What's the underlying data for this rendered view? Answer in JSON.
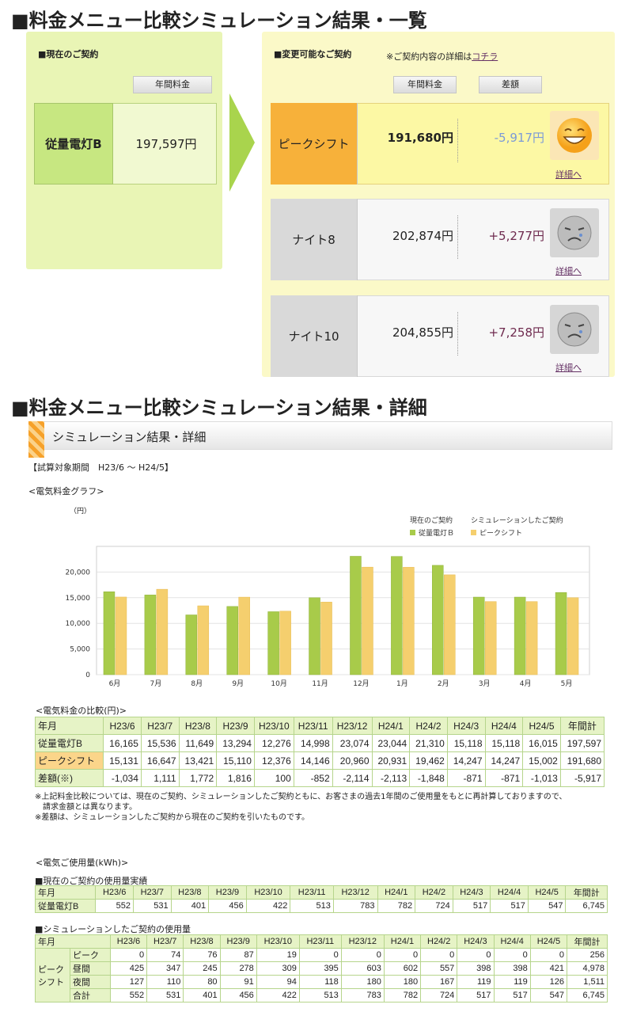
{
  "heading_summary": "■料金メニュー比較シミュレーション結果・一覧",
  "current": {
    "title": "■現在のご契約",
    "col_label": "年間料金",
    "name": "従量電灯B",
    "price": "197,597円"
  },
  "changeable": {
    "title": "■変更可能なご契約",
    "note_prefix": "※ご契約内容の詳細は",
    "note_link": "コチラ",
    "col_price": "年間料金",
    "col_diff": "差額",
    "options": [
      {
        "name": "ピークシフト",
        "price": "191,680円",
        "diff": "-5,917円",
        "link": "詳細へ",
        "diff_color": "#7b9ad8",
        "face": "happy-face-icon"
      },
      {
        "name": "ナイト8",
        "price": "202,874円",
        "diff": "+5,277円",
        "link": "詳細へ",
        "diff_color": "#6e2a4e",
        "face": "sad-face-icon"
      },
      {
        "name": "ナイト10",
        "price": "204,855円",
        "diff": "+7,258円",
        "link": "詳細へ",
        "diff_color": "#6e2a4e",
        "face": "sad-face-icon"
      }
    ]
  },
  "heading_detail": "■料金メニュー比較シミュレーション結果・詳細",
  "detail": {
    "section_title": "シミュレーション結果・詳細",
    "period": "【試算対象期間　H23/6 〜 H24/5】",
    "graph_title": "<電気料金グラフ>",
    "unit": "（円）",
    "compare_title": "<電気料金の比較(円)>",
    "notes": [
      "※上記料金比較については、現在のご契約、シミュレーションしたご契約ともに、お客さまの過去1年間のご使用量をもとに再計算しておりますので、",
      "　請求金額とは異なります。",
      "※差額は、シミュレーションしたご契約から現在のご契約を引いたものです。"
    ],
    "usage_title": "<電気ご使用量(kWh)>",
    "usage_current_title": "■現在のご契約の使用量実績",
    "usage_sim_title": "■シミュレーションしたご契約の使用量"
  },
  "chart_data": {
    "type": "bar",
    "categories": [
      "6月",
      "7月",
      "8月",
      "9月",
      "10月",
      "11月",
      "12月",
      "1月",
      "2月",
      "3月",
      "4月",
      "5月"
    ],
    "legend_headers": [
      "現在のご契約",
      "シミュレーションしたご契約"
    ],
    "series": [
      {
        "name": "従量電灯Ｂ",
        "color": "#a8cb4a",
        "values": [
          16165,
          15536,
          11649,
          13294,
          12276,
          14998,
          23074,
          23044,
          21310,
          15118,
          15118,
          16015
        ]
      },
      {
        "name": "ピークシフト",
        "color": "#f5cf6e",
        "values": [
          15131,
          16647,
          13421,
          15110,
          12376,
          14146,
          20960,
          20931,
          19462,
          14247,
          14247,
          15002
        ]
      }
    ],
    "yticks": [
      "0",
      "5,000",
      "10,000",
      "15,000",
      "20,000"
    ],
    "ylim": [
      0,
      25000
    ],
    "legend": "top-right",
    "grid": true
  },
  "compare_table": {
    "header": [
      "年月",
      "H23/6",
      "H23/7",
      "H23/8",
      "H23/9",
      "H23/10",
      "H23/11",
      "H23/12",
      "H24/1",
      "H24/2",
      "H24/3",
      "H24/4",
      "H24/5",
      "年間計"
    ],
    "rows": [
      [
        "従量電灯B",
        "16,165",
        "15,536",
        "11,649",
        "13,294",
        "12,276",
        "14,998",
        "23,074",
        "23,044",
        "21,310",
        "15,118",
        "15,118",
        "16,015",
        "197,597"
      ],
      [
        "ピークシフト",
        "15,131",
        "16,647",
        "13,421",
        "15,110",
        "12,376",
        "14,146",
        "20,960",
        "20,931",
        "19,462",
        "14,247",
        "14,247",
        "15,002",
        "191,680"
      ],
      [
        "差額(※)",
        "-1,034",
        "1,111",
        "1,772",
        "1,816",
        "100",
        "-852",
        "-2,114",
        "-2,113",
        "-1,848",
        "-871",
        "-871",
        "-1,013",
        "-5,917"
      ]
    ]
  },
  "usage_current_table": {
    "header": [
      "年月",
      "H23/6",
      "H23/7",
      "H23/8",
      "H23/9",
      "H23/10",
      "H23/11",
      "H23/12",
      "H24/1",
      "H24/2",
      "H24/3",
      "H24/4",
      "H24/5",
      "年間計"
    ],
    "rows": [
      [
        "従量電灯B",
        "552",
        "531",
        "401",
        "456",
        "422",
        "513",
        "783",
        "782",
        "724",
        "517",
        "517",
        "547",
        "6,745"
      ]
    ]
  },
  "usage_sim_table": {
    "header": [
      "年月",
      "H23/6",
      "H23/7",
      "H23/8",
      "H23/9",
      "H23/10",
      "H23/11",
      "H23/12",
      "H24/1",
      "H24/2",
      "H24/3",
      "H24/4",
      "H24/5",
      "年間計"
    ],
    "group": "ピークシフト",
    "rows": [
      [
        "ピーク",
        "0",
        "74",
        "76",
        "87",
        "19",
        "0",
        "0",
        "0",
        "0",
        "0",
        "0",
        "0",
        "256"
      ],
      [
        "昼間",
        "425",
        "347",
        "245",
        "278",
        "309",
        "395",
        "603",
        "602",
        "557",
        "398",
        "398",
        "421",
        "4,978"
      ],
      [
        "夜間",
        "127",
        "110",
        "80",
        "91",
        "94",
        "118",
        "180",
        "180",
        "167",
        "119",
        "119",
        "126",
        "1,511"
      ],
      [
        "合計",
        "552",
        "531",
        "401",
        "456",
        "422",
        "513",
        "783",
        "782",
        "724",
        "517",
        "517",
        "547",
        "6,745"
      ]
    ]
  }
}
